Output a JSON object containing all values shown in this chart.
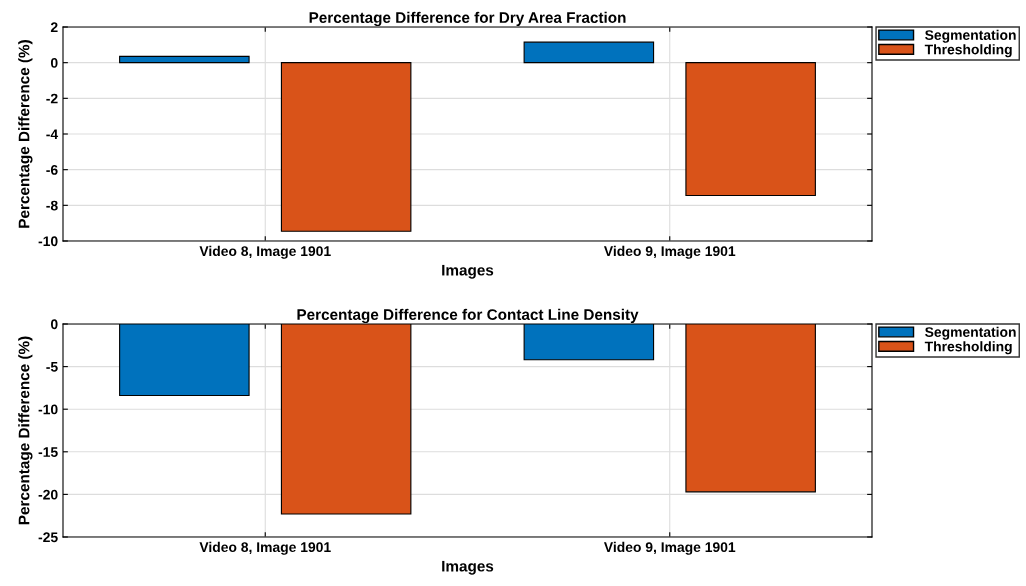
{
  "chart_data": [
    {
      "type": "bar",
      "title": "Percentage Difference for Dry Area Fraction",
      "xlabel": "Images",
      "ylabel": "Percentage Difference (%)",
      "categories": [
        "Video 8, Image 1901",
        "Video 9, Image 1901"
      ],
      "series": [
        {
          "name": "Segmentation",
          "color": "#0072bd",
          "values": [
            0.35,
            1.15
          ]
        },
        {
          "name": "Thresholding",
          "color": "#d95319",
          "values": [
            -9.45,
            -7.45
          ]
        }
      ],
      "ylim": [
        -10,
        2
      ],
      "yticks": [
        -10,
        -8,
        -6,
        -4,
        -2,
        0,
        2
      ],
      "grid": true,
      "legend": "right"
    },
    {
      "type": "bar",
      "title": "Percentage Difference for Contact Line Density",
      "xlabel": "Images",
      "ylabel": "Percentage Difference (%)",
      "categories": [
        "Video 8, Image 1901",
        "Video 9, Image 1901"
      ],
      "series": [
        {
          "name": "Segmentation",
          "color": "#0072bd",
          "values": [
            -8.4,
            -4.2
          ]
        },
        {
          "name": "Thresholding",
          "color": "#d95319",
          "values": [
            -22.3,
            -19.7
          ]
        }
      ],
      "ylim": [
        -25,
        0
      ],
      "yticks": [
        -25,
        -20,
        -15,
        -10,
        -5,
        0
      ],
      "grid": true,
      "legend": "right"
    }
  ]
}
